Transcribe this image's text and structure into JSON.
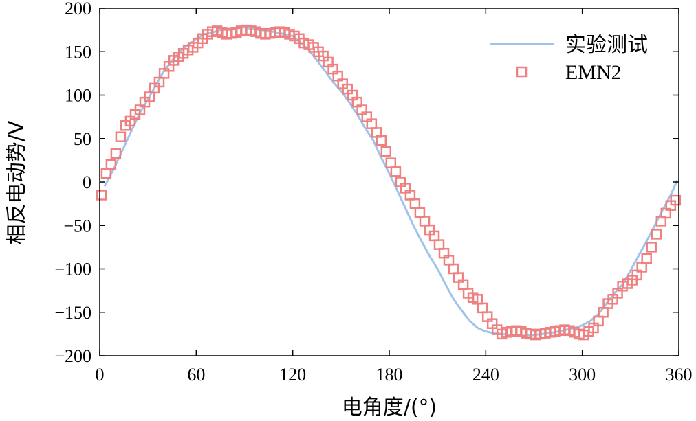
{
  "chart_data": {
    "type": "line",
    "title": "",
    "xlabel": "电角度/(°)",
    "ylabel": "相反电动势/V",
    "xlim": [
      0,
      360
    ],
    "ylim": [
      -200,
      200
    ],
    "xticks": [
      0,
      60,
      120,
      180,
      240,
      300,
      360
    ],
    "yticks": [
      -200,
      -150,
      -100,
      -50,
      0,
      50,
      100,
      150,
      200
    ],
    "xtick_labels": [
      "0",
      "60",
      "120",
      "180",
      "240",
      "300",
      "360"
    ],
    "ytick_labels": [
      "−200",
      "−150",
      "−100",
      "−50",
      "0",
      "50",
      "100",
      "150",
      "200"
    ],
    "grid": false,
    "legend_position": "top-right",
    "series": [
      {
        "name": "实验测试",
        "style": "line",
        "color": "#9ec4ec",
        "x": [
          3,
          6,
          10,
          15,
          20,
          25,
          30,
          35,
          40,
          45,
          50,
          55,
          60,
          65,
          70,
          75,
          80,
          85,
          90,
          95,
          100,
          105,
          110,
          115,
          120,
          125,
          130,
          135,
          140,
          145,
          150,
          155,
          160,
          165,
          170,
          175,
          180,
          185,
          190,
          195,
          200,
          205,
          210,
          215,
          220,
          225,
          230,
          235,
          240,
          245,
          250,
          255,
          260,
          265,
          270,
          275,
          280,
          285,
          290,
          295,
          300,
          305,
          310,
          315,
          320,
          325,
          330,
          335,
          340,
          345,
          350,
          355,
          359
        ],
        "y": [
          -5,
          5,
          20,
          40,
          60,
          80,
          95,
          112,
          128,
          140,
          150,
          158,
          165,
          170,
          172,
          175,
          176,
          178,
          178,
          176,
          175,
          174,
          172,
          170,
          168,
          160,
          152,
          140,
          128,
          115,
          105,
          92,
          78,
          62,
          48,
          28,
          10,
          -10,
          -30,
          -50,
          -68,
          -85,
          -100,
          -118,
          -135,
          -148,
          -160,
          -168,
          -172,
          -174,
          -175,
          -176,
          -177,
          -177,
          -176,
          -175,
          -174,
          -172,
          -170,
          -168,
          -165,
          -160,
          -152,
          -140,
          -128,
          -118,
          -102,
          -85,
          -68,
          -50,
          -32,
          -15,
          2
        ]
      },
      {
        "name": "EMN2",
        "style": "marker-square",
        "color": "#ee8080",
        "x": [
          1,
          4,
          7,
          10,
          13,
          16,
          19,
          22,
          25,
          28,
          31,
          34,
          37,
          40,
          43,
          46,
          49,
          52,
          55,
          58,
          61,
          64,
          67,
          70,
          73,
          76,
          79,
          82,
          85,
          88,
          91,
          94,
          97,
          100,
          103,
          106,
          109,
          112,
          115,
          118,
          121,
          124,
          127,
          130,
          133,
          136,
          139,
          142,
          145,
          148,
          151,
          154,
          157,
          160,
          163,
          166,
          169,
          172,
          175,
          178,
          181,
          184,
          187,
          190,
          193,
          196,
          199,
          202,
          205,
          208,
          211,
          214,
          217,
          220,
          223,
          226,
          229,
          232,
          235,
          238,
          241,
          244,
          247,
          250,
          253,
          256,
          259,
          262,
          265,
          268,
          271,
          274,
          277,
          280,
          283,
          286,
          289,
          292,
          295,
          298,
          301,
          304,
          307,
          310,
          313,
          316,
          319,
          322,
          325,
          328,
          331,
          334,
          337,
          340,
          343,
          346,
          349,
          352,
          355,
          358
        ],
        "y": [
          -15,
          10,
          20,
          33,
          52,
          65,
          70,
          78,
          83,
          92,
          98,
          108,
          115,
          125,
          133,
          140,
          144,
          148,
          152,
          155,
          160,
          165,
          170,
          173,
          174,
          172,
          170,
          171,
          172,
          174,
          175,
          174,
          173,
          171,
          170,
          171,
          172,
          173,
          172,
          170,
          168,
          165,
          160,
          158,
          155,
          150,
          145,
          138,
          130,
          122,
          113,
          107,
          100,
          92,
          83,
          75,
          67,
          57,
          48,
          35,
          22,
          12,
          0,
          -7,
          -15,
          -25,
          -35,
          -45,
          -55,
          -62,
          -72,
          -82,
          -90,
          -100,
          -110,
          -118,
          -128,
          -133,
          -135,
          -145,
          -155,
          -163,
          -170,
          -175,
          -173,
          -172,
          -171,
          -172,
          -174,
          -175,
          -176,
          -175,
          -174,
          -173,
          -172,
          -171,
          -170,
          -171,
          -173,
          -175,
          -176,
          -172,
          -168,
          -160,
          -150,
          -140,
          -135,
          -128,
          -120,
          -117,
          -113,
          -107,
          -98,
          -88,
          -75,
          -60,
          -45,
          -36,
          -27,
          -21
        ]
      }
    ]
  }
}
